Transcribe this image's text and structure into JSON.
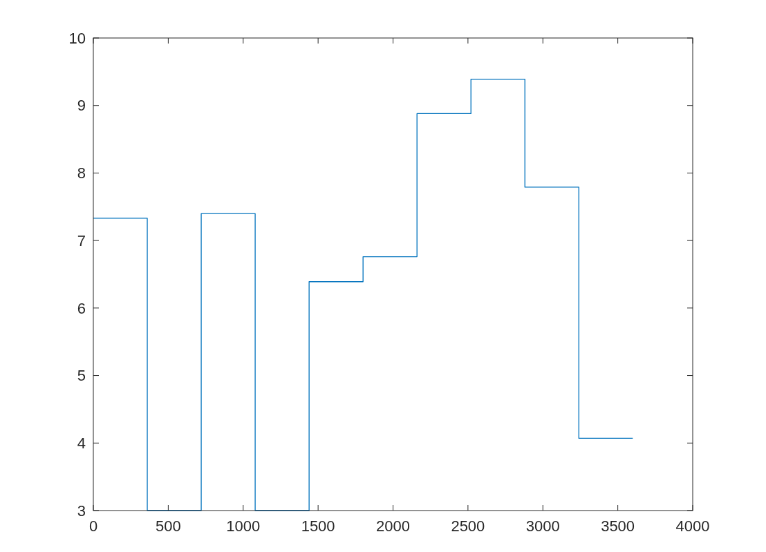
{
  "chart_data": {
    "type": "step",
    "x": [
      0,
      360,
      720,
      1080,
      1440,
      1800,
      2160,
      2520,
      2880,
      3240,
      3600
    ],
    "values": [
      7.33,
      3,
      7.4,
      3,
      6.39,
      6.76,
      8.88,
      9.39,
      7.79,
      4.07,
      4.07
    ],
    "color": "#0072bd",
    "xlim": [
      0,
      4000
    ],
    "xticks": [
      0,
      500,
      1000,
      1500,
      2000,
      2500,
      3000,
      3500,
      4000
    ],
    "ylim": [
      3,
      10
    ],
    "yticks": [
      3,
      4,
      5,
      6,
      7,
      8,
      9,
      10
    ]
  }
}
